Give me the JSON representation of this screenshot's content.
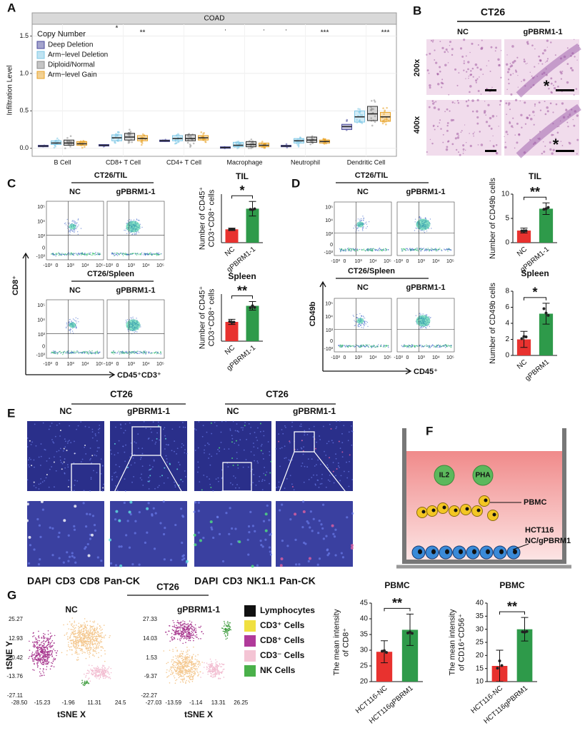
{
  "panels": [
    "A",
    "B",
    "C",
    "D",
    "E",
    "F",
    "G"
  ],
  "chart_data": [
    {
      "type": "box",
      "title": "COAD",
      "ylabel": "Infiltration Level",
      "legend_title": "Copy Number",
      "categories": [
        "B Cell",
        "CD8+ T Cell",
        "CD4+ T Cell",
        "Macrophage",
        "Neutrophil",
        "Dendritic Cell"
      ],
      "series": [
        {
          "name": "Deep Deletion",
          "color": "#4a4a9c",
          "boxes": [
            [
              0.02,
              0.03,
              0.04
            ],
            [
              0.03,
              0.04,
              0.05
            ],
            [
              0.09,
              0.1,
              0.11
            ],
            [
              0.0,
              0.01,
              0.02
            ],
            [
              0.02,
              0.03,
              0.04
            ],
            [
              0.25,
              0.29,
              0.32
            ]
          ]
        },
        {
          "name": "Arm−level Deletion",
          "color": "#80c8e6",
          "boxes": [
            [
              0.05,
              0.07,
              0.1
            ],
            [
              0.1,
              0.14,
              0.18
            ],
            [
              0.1,
              0.13,
              0.17
            ],
            [
              0.02,
              0.04,
              0.08
            ],
            [
              0.07,
              0.1,
              0.13
            ],
            [
              0.35,
              0.42,
              0.5
            ]
          ]
        },
        {
          "name": "Diploid/Normal",
          "color": "#8c8c8c",
          "boxes": [
            [
              0.04,
              0.07,
              0.11
            ],
            [
              0.11,
              0.15,
              0.2
            ],
            [
              0.1,
              0.13,
              0.18
            ],
            [
              0.02,
              0.05,
              0.09
            ],
            [
              0.08,
              0.11,
              0.15
            ],
            [
              0.37,
              0.46,
              0.56
            ]
          ]
        },
        {
          "name": "Arm−level Gain",
          "color": "#e8a328",
          "boxes": [
            [
              0.04,
              0.06,
              0.09
            ],
            [
              0.1,
              0.13,
              0.17
            ],
            [
              0.11,
              0.14,
              0.17
            ],
            [
              0.02,
              0.04,
              0.07
            ],
            [
              0.07,
              0.09,
              0.11
            ],
            [
              0.36,
              0.42,
              0.48
            ]
          ]
        }
      ],
      "ylim": [
        -0.05,
        1.6
      ],
      "yticks": [
        {
          "value": 0,
          "label": "0.0"
        },
        {
          "value": 0.5,
          "label": "0.5"
        },
        {
          "value": 1,
          "label": "1.0"
        },
        {
          "value": 1.5,
          "label": "1.5"
        }
      ],
      "grid": true,
      "annotations": [
        {
          "text": "*",
          "category": 1,
          "series": 1
        },
        {
          "text": "**",
          "category": 1,
          "series": 3
        },
        {
          "text": ".",
          "category": 3,
          "series": 0
        },
        {
          "text": ".",
          "category": 3,
          "series": 3
        },
        {
          "text": ".",
          "category": 4,
          "series": 0
        },
        {
          "text": "***",
          "category": 4,
          "series": 3
        },
        {
          "text": "***",
          "category": 5,
          "series": 3
        }
      ]
    },
    {
      "type": "bar",
      "title": "TIL",
      "ylabel": [
        "Number of CD45⁺",
        "CD3⁺CD8⁺ cells"
      ],
      "categories": [
        "NC",
        "gPBRM1-1"
      ],
      "values": [
        11,
        28
      ],
      "errors": [
        1,
        6
      ],
      "colors": [
        "#e8322f",
        "#2e9a4a"
      ],
      "ylim": [
        0,
        40
      ],
      "significance": "*"
    },
    {
      "type": "bar",
      "title": "Spleen",
      "ylabel": [
        "Number of CD45⁺",
        "CD3⁺CD8⁺ cells"
      ],
      "categories": [
        "NC",
        "gPBRM1-1"
      ],
      "values": [
        9,
        16.5
      ],
      "errors": [
        1.2,
        2
      ],
      "colors": [
        "#e8322f",
        "#2e9a4a"
      ],
      "ylim": [
        0,
        22
      ],
      "significance": "**"
    },
    {
      "type": "bar",
      "title": "TIL",
      "ylabel": [
        "Number of CD49b cells"
      ],
      "categories": [
        "NC",
        "gPBRM1-1"
      ],
      "values": [
        2.5,
        7
      ],
      "errors": [
        0.5,
        1.2
      ],
      "colors": [
        "#e8322f",
        "#2e9a4a"
      ],
      "ylim": [
        0,
        10
      ],
      "yticks": [
        0,
        5,
        10
      ],
      "significance": "**"
    },
    {
      "type": "bar",
      "title": "Spleen",
      "ylabel": [
        "Number of CD49b cells"
      ],
      "categories": [
        "NC",
        "gPBRM1"
      ],
      "values": [
        2,
        5.2
      ],
      "errors": [
        1,
        1.3
      ],
      "colors": [
        "#e8322f",
        "#2e9a4a"
      ],
      "ylim": [
        0,
        8
      ],
      "yticks": [
        0,
        2,
        4,
        6,
        8
      ],
      "significance": "*"
    },
    {
      "type": "bar",
      "title": "PBMC",
      "ylabel": [
        "The mean intensity",
        "of CD8⁺"
      ],
      "categories": [
        "HCT116-NC",
        "HCT116gPBRM1"
      ],
      "values": [
        29.5,
        36.5
      ],
      "errors": [
        3.5,
        5
      ],
      "colors": [
        "#e8322f",
        "#2e9a4a"
      ],
      "ylim": [
        20,
        45
      ],
      "yticks": [
        20,
        25,
        30,
        35,
        40,
        45
      ],
      "significance": "**"
    },
    {
      "type": "bar",
      "title": "PBMC",
      "ylabel": [
        "The mean intensity",
        "of CD16⁺CD56⁺"
      ],
      "categories": [
        "HCT116-NC",
        "HCT116gPBRM1"
      ],
      "values": [
        16,
        30
      ],
      "errors": [
        6,
        4.5
      ],
      "colors": [
        "#e8322f",
        "#2e9a4a"
      ],
      "ylim": [
        10,
        40
      ],
      "yticks": [
        10,
        15,
        20,
        25,
        30,
        35,
        40
      ],
      "significance": "**"
    }
  ],
  "histology": {
    "title": "CT26",
    "columns": [
      "NC",
      "gPBRM1-1"
    ],
    "rows": [
      "200x",
      "400x"
    ],
    "marker": "*"
  },
  "flow_c": {
    "tissues": [
      "CT26/TIL",
      "CT26/Spleen"
    ],
    "columns": [
      "NC",
      "gPBRM1-1"
    ],
    "y_axis": "CD8⁺",
    "x_axis": "CD45⁺CD3⁺",
    "y_ticks": [
      "10⁵",
      "10⁴",
      "10³",
      "0",
      "-10³"
    ],
    "x_ticks": [
      "-10³",
      "0",
      "10³",
      "10⁴",
      "10⁵"
    ]
  },
  "flow_d": {
    "tissues": [
      "CT26/TIL",
      "CT26/Spleen"
    ],
    "columns": [
      "NC",
      "gPBRM1-1"
    ],
    "y_axis": "CD49b",
    "x_axis": "CD45⁺",
    "y_ticks": [
      "10⁵",
      "10⁴",
      "10³",
      "0",
      "-10³"
    ],
    "x_ticks": [
      "-10³",
      "0",
      "10³",
      "10⁴",
      "10⁵"
    ]
  },
  "fluorescence": [
    {
      "title": "CT26",
      "columns": [
        "NC",
        "gPBRM1-1"
      ],
      "stains": [
        {
          "text": "DAPI",
          "color": "#3a4fc0"
        },
        {
          "text": "CD3",
          "color": "#2a9a4a"
        },
        {
          "text": "CD8",
          "color": "#e0302e"
        },
        {
          "text": "Pan-CK",
          "color": "#b04aa8"
        }
      ]
    },
    {
      "title": "CT26",
      "columns": [
        "NC",
        "gPBRM1-1"
      ],
      "stains": [
        {
          "text": "DAPI",
          "color": "#3a4fc0"
        },
        {
          "text": "CD3",
          "color": "#2a9a4a"
        },
        {
          "text": "NK1.1",
          "color": "#e0302e"
        },
        {
          "text": "Pan-CK",
          "color": "#b04aa8"
        }
      ]
    }
  ],
  "coculture": {
    "cytokines": [
      "IL2",
      "PHA"
    ],
    "cells": "PBMC",
    "layer": [
      "HCT116",
      "NC/gPBRM1"
    ]
  },
  "tsne": {
    "title": "CT26",
    "y_axis": "tSNE Y",
    "x_axis": "tSNE X",
    "plots": [
      {
        "name": "NC",
        "yticks": [
          "25.27",
          "12.93",
          "-0.42",
          "-13.76",
          "-27.11"
        ],
        "xticks": [
          "-28.50",
          "-15.23",
          "-1.96",
          "11.31",
          "24.5"
        ]
      },
      {
        "name": "gPBRM1-1",
        "yticks": [
          "27.33",
          "14.03",
          "1.53",
          "-9.37",
          "-22.27"
        ],
        "xticks": [
          "-27.03",
          "-13.59",
          "-1.14",
          "13.31",
          "26.25"
        ]
      }
    ],
    "legend": [
      {
        "name": "Lymphocytes",
        "color": "#111111"
      },
      {
        "name": "CD3⁺ Cells",
        "color": "#f0e040"
      },
      {
        "name": "CD8⁺ Cells",
        "color": "#b03a9a"
      },
      {
        "name": "CD3⁻ Cells",
        "color": "#f4c4d4"
      },
      {
        "name": "NK Cells",
        "color": "#4ab04a"
      }
    ]
  }
}
